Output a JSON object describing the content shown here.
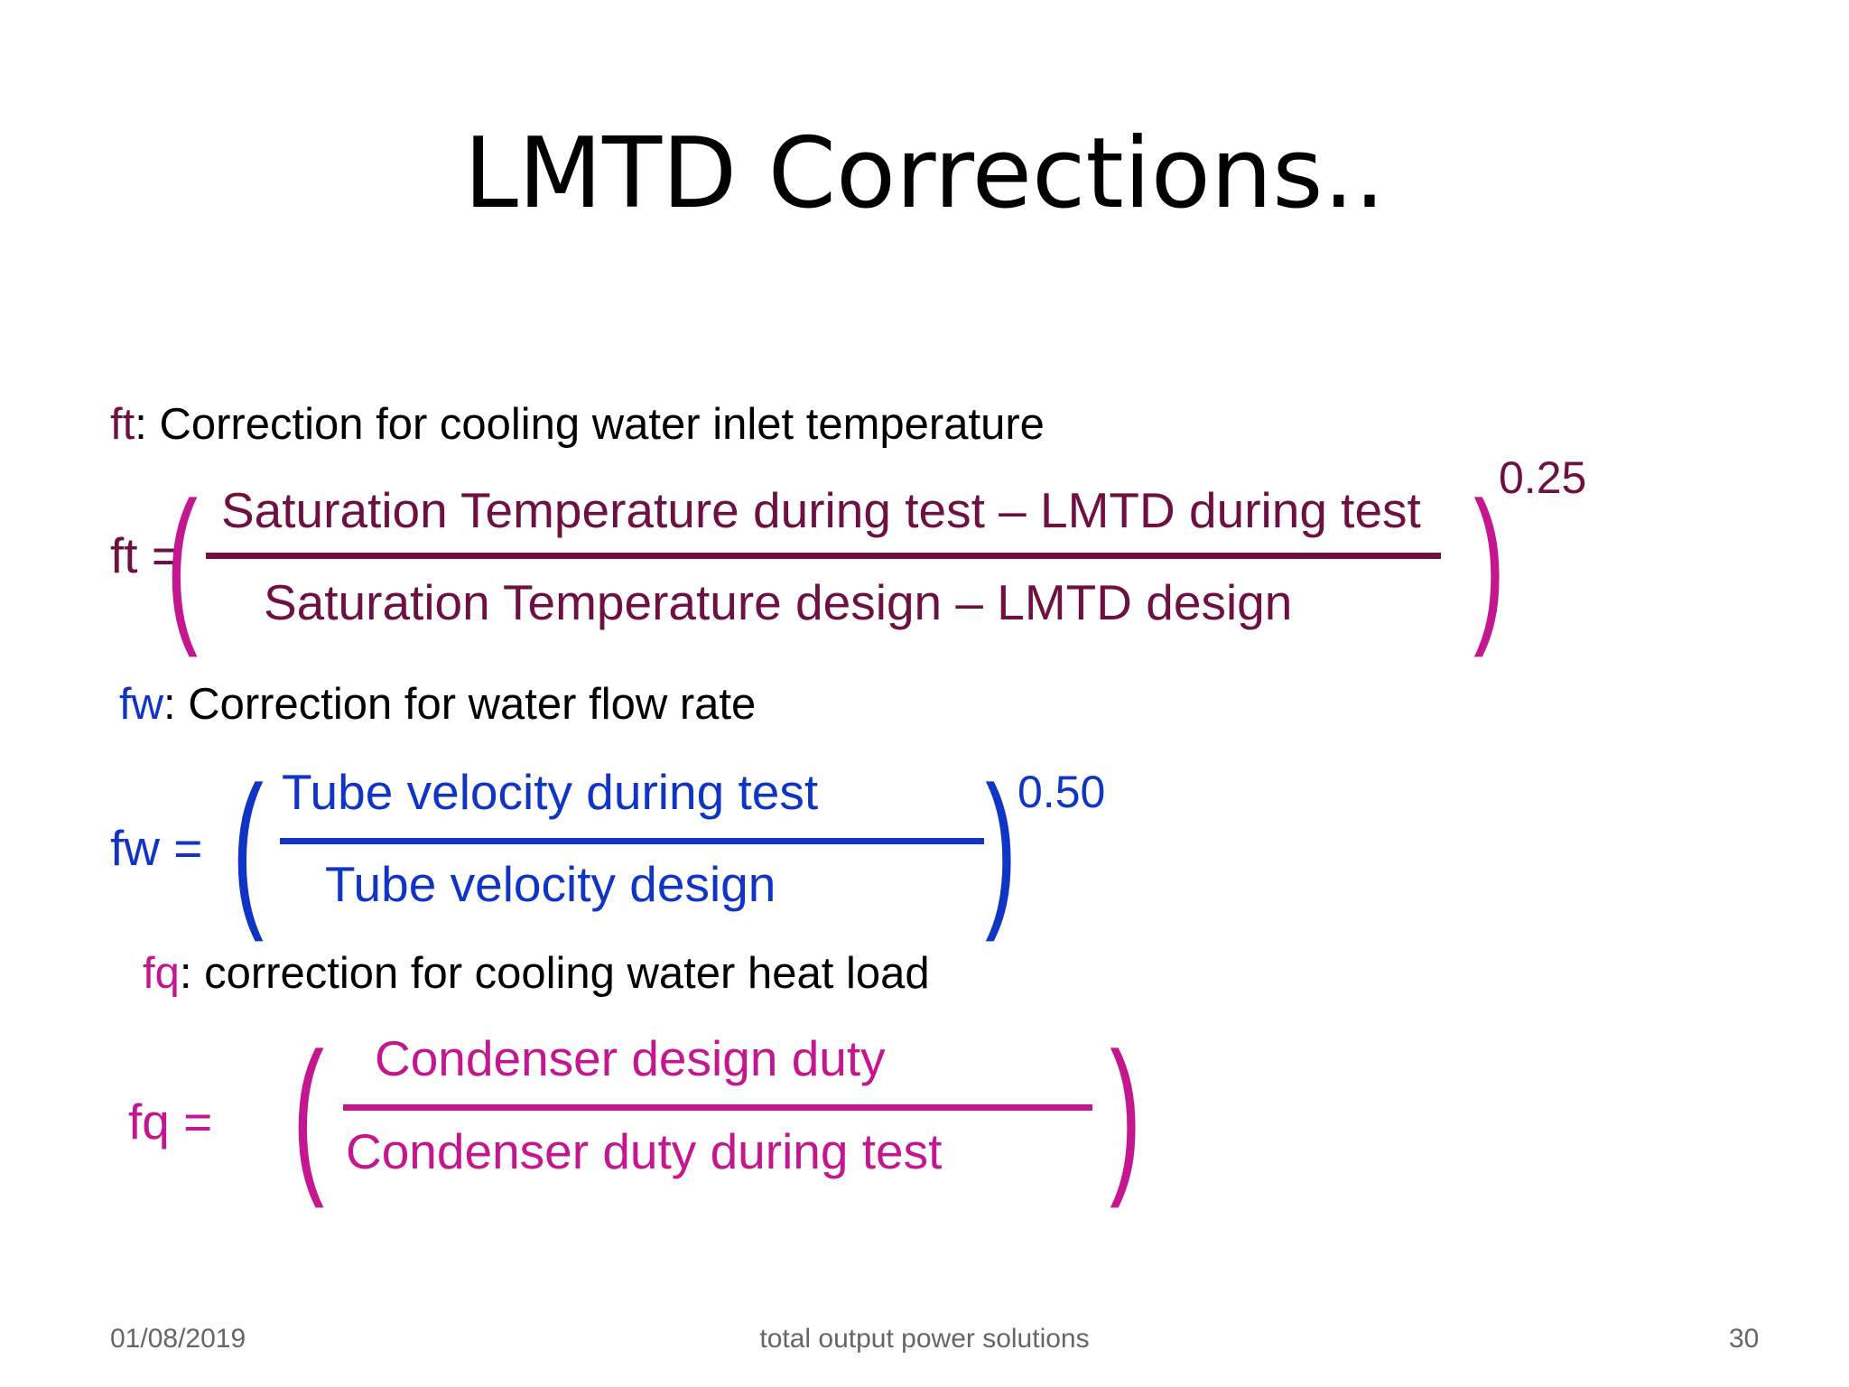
{
  "slide": {
    "title": "LMTD Corrections..",
    "footer": {
      "date": "01/08/2019",
      "center": "total output power solutions",
      "page_number": "30"
    }
  },
  "ft": {
    "symbol": "ft",
    "description": ": Correction for cooling water inlet temperature",
    "lhs": "ft =",
    "numerator": "Saturation Temperature during test – LMTD during test",
    "denominator": "Saturation Temperature design – LMTD design",
    "exponent": "0.25",
    "color": "#6e1142",
    "paren_color": "#c4168f"
  },
  "fw": {
    "symbol": "fw",
    "description": ": Correction for water flow rate",
    "lhs": "fw =",
    "numerator": "Tube velocity during test",
    "denominator": "Tube velocity design",
    "exponent": "0.50",
    "color": "#1034c4"
  },
  "fq": {
    "symbol": "fq",
    "description": ": correction for cooling water heat load",
    "lhs": "fq =",
    "numerator": "Condenser design duty",
    "denominator": "Condenser duty during test",
    "color": "#c4168f"
  }
}
